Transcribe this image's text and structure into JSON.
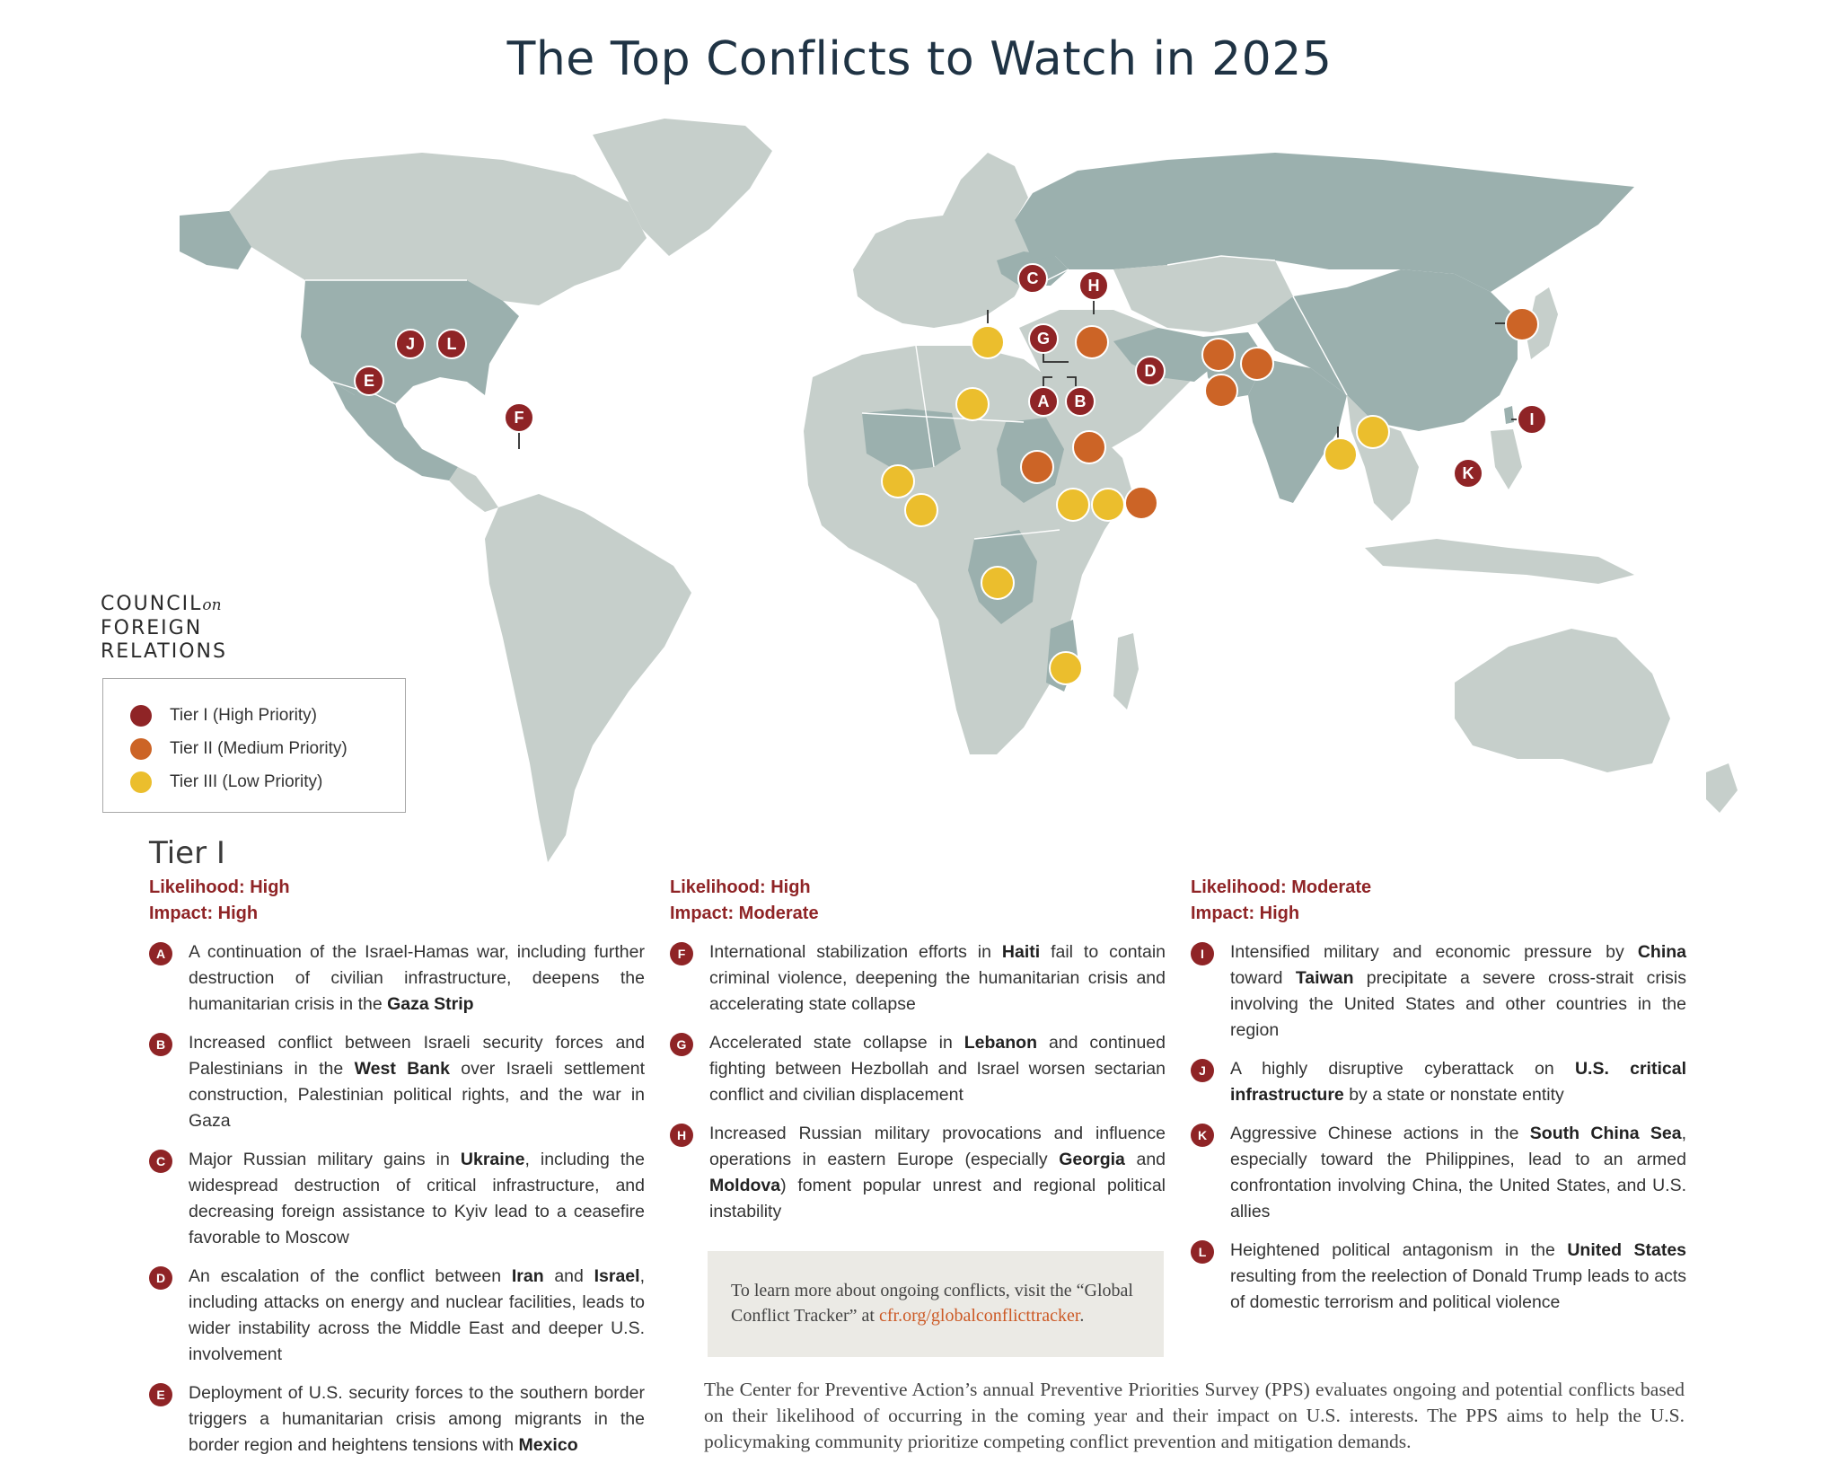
{
  "title": "The Top Conflicts to Watch in 2025",
  "logo": {
    "line1": "COUNCIL",
    "on": "on",
    "line2": "FOREIGN",
    "line3": "RELATIONS"
  },
  "colors": {
    "tier1": "#8f2426",
    "tier2": "#cc6426",
    "tier3": "#ebbe2d",
    "land": "#c6cfcb",
    "land_highlight": "#9bb0ae"
  },
  "legend": [
    {
      "label": "Tier I (High Priority)",
      "color": "#8f2426"
    },
    {
      "label": "Tier II (Medium Priority)",
      "color": "#cc6426"
    },
    {
      "label": "Tier III (Low Priority)",
      "color": "#ebbe2d"
    }
  ],
  "tier_heading": "Tier I",
  "groups": [
    {
      "likelihood": "Likelihood: High",
      "impact": "Impact: High",
      "items": [
        {
          "letter": "A",
          "parts": [
            "A continuation of the Israel-Hamas war, including further destruction of civilian infrastructure, deepens the humanitarian crisis in the ",
            "Gaza Strip",
            ""
          ]
        },
        {
          "letter": "B",
          "parts": [
            "Increased conflict between Israeli security forces and Palestinians in the ",
            "West Bank",
            " over Israeli settlement construction, Palestinian political rights, and the war in Gaza"
          ]
        },
        {
          "letter": "C",
          "parts": [
            "Major Russian military gains in ",
            "Ukraine",
            ", including the widespread destruction of critical infrastructure, and decreasing foreign assistance to Kyiv lead to a ceasefire favorable to Moscow"
          ]
        },
        {
          "letter": "D",
          "parts": [
            "An escalation of the conflict between ",
            "Iran",
            " and ",
            "Israel",
            ", including attacks on energy and nuclear facilities, leads to wider instability across the Middle East and deeper U.S. involvement"
          ]
        },
        {
          "letter": "E",
          "parts": [
            "Deployment of U.S. security forces to the southern border triggers a humanitarian crisis among migrants in the border region and heightens tensions with ",
            "Mexico",
            ""
          ]
        }
      ]
    },
    {
      "likelihood": "Likelihood: High",
      "impact": "Impact: Moderate",
      "items": [
        {
          "letter": "F",
          "parts": [
            "International stabilization efforts in ",
            "Haiti",
            " fail to contain criminal violence, deepening the humanitarian crisis and accelerating state collapse"
          ]
        },
        {
          "letter": "G",
          "parts": [
            "Accelerated state collapse in ",
            "Lebanon",
            " and continued fighting between Hezbollah and Israel worsen sectarian conflict and civilian displacement"
          ]
        },
        {
          "letter": "H",
          "parts": [
            "Increased Russian military provocations and influence operations in eastern Europe (especially ",
            "Georgia",
            " and ",
            "Moldova",
            ") foment popular unrest and regional political instability"
          ]
        }
      ]
    },
    {
      "likelihood": "Likelihood: Moderate",
      "impact": "Impact: High",
      "items": [
        {
          "letter": "I",
          "parts": [
            "Intensified military and economic pressure by ",
            "China",
            " toward ",
            "Taiwan",
            " precipitate a severe cross-strait crisis involving the United States and other countries in the region"
          ]
        },
        {
          "letter": "J",
          "parts": [
            "A highly disruptive cyberattack on ",
            "U.S. critical infrastructure",
            " by a state or nonstate entity"
          ]
        },
        {
          "letter": "K",
          "parts": [
            "Aggressive Chinese actions in the ",
            "South China Sea",
            ", especially toward the Philippines, lead to an armed confrontation involving China, the United States, and U.S. allies"
          ]
        },
        {
          "letter": "L",
          "parts": [
            "Heightened political antagonism in the ",
            "United States",
            " resulting from the reelection of Donald Trump leads to acts of domestic terrorism and political violence"
          ]
        }
      ]
    }
  ],
  "note": {
    "text": "To learn more about ongoing conflicts, visit the “Global Conflict Tracker” at ",
    "link": "cfr.org/globalconflicttracker",
    "end": "."
  },
  "footer": "The Center for Preventive Action’s annual Preventive Priorities Survey (PPS) evaluates ongoing and potential conflicts based on their likelihood of occurring in the coming year and their impact on U.S. interests. The PPS aims to help the U.S. policymaking community prioritize competing conflict prevention and mitigation demands.",
  "markers": [
    {
      "label": "J",
      "tier": 1
    },
    {
      "label": "L",
      "tier": 1
    },
    {
      "label": "E",
      "tier": 1
    },
    {
      "label": "F",
      "tier": 1
    },
    {
      "label": "C",
      "tier": 1
    },
    {
      "label": "H",
      "tier": 1
    },
    {
      "label": "G",
      "tier": 1
    },
    {
      "label": "A",
      "tier": 1
    },
    {
      "label": "B",
      "tier": 1
    },
    {
      "label": "D",
      "tier": 1
    },
    {
      "label": "I",
      "tier": 1
    },
    {
      "label": "K",
      "tier": 1
    },
    {
      "label": "",
      "tier": 2
    },
    {
      "label": "",
      "tier": 2
    },
    {
      "label": "",
      "tier": 2
    },
    {
      "label": "",
      "tier": 2
    },
    {
      "label": "",
      "tier": 2
    },
    {
      "label": "",
      "tier": 2
    },
    {
      "label": "",
      "tier": 2
    },
    {
      "label": "",
      "tier": 2
    },
    {
      "label": "",
      "tier": 3
    },
    {
      "label": "",
      "tier": 3
    },
    {
      "label": "",
      "tier": 3
    },
    {
      "label": "",
      "tier": 3
    },
    {
      "label": "",
      "tier": 3
    },
    {
      "label": "",
      "tier": 3
    },
    {
      "label": "",
      "tier": 3
    },
    {
      "label": "",
      "tier": 3
    },
    {
      "label": "",
      "tier": 3
    },
    {
      "label": "",
      "tier": 3
    },
    {
      "label": "",
      "tier": 3
    }
  ]
}
